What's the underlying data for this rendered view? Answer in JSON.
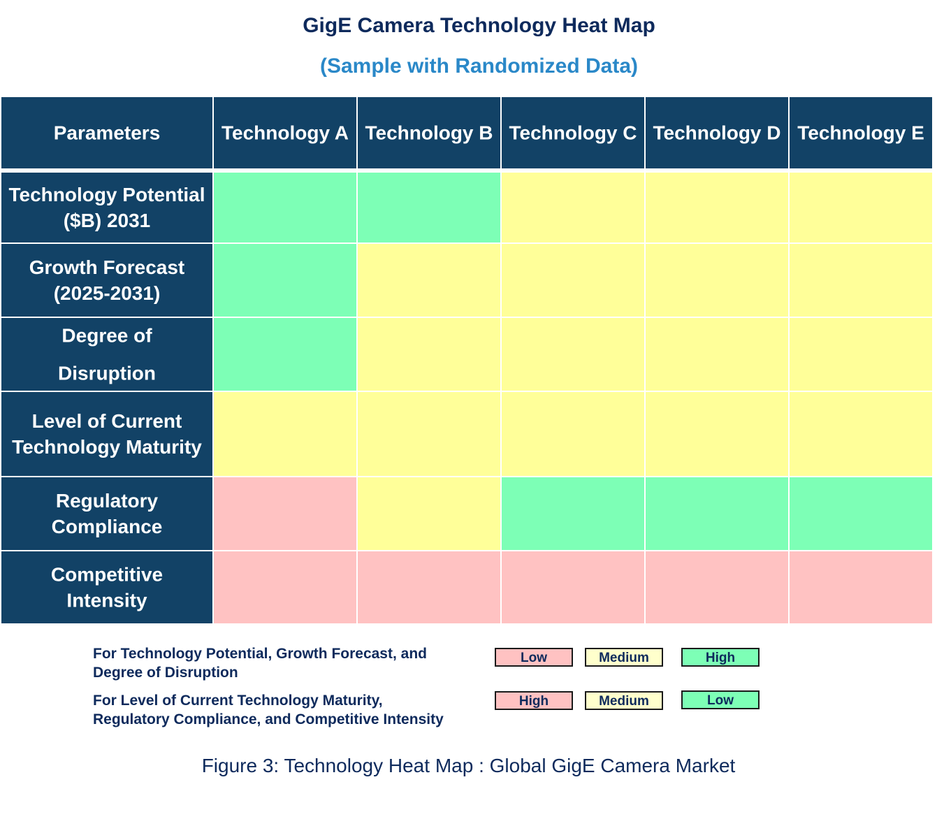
{
  "title": "GigE Camera Technology Heat Map",
  "subtitle": "(Sample with Randomized Data)",
  "colors": {
    "header_bg": "#124266",
    "header_text": "#ffffff",
    "low_good": "#7dffb6",
    "medium": "#ffff99",
    "high_bad": "#ffc2c2",
    "text_dark": "#0e2a5c"
  },
  "chart_data": {
    "type": "heatmap",
    "corner_label": "Parameters",
    "columns": [
      "Technology A",
      "Technology B",
      "Technology C",
      "Technology D",
      "Technology E"
    ],
    "rows": [
      {
        "label_lines": [
          "Technology Potential",
          "($B) 2031"
        ],
        "levels": [
          "High",
          "High",
          "Medium",
          "Medium",
          "Medium"
        ]
      },
      {
        "label_lines": [
          "Growth Forecast",
          "(2025-2031)"
        ],
        "levels": [
          "High",
          "Medium",
          "Medium",
          "Medium",
          "Medium"
        ]
      },
      {
        "label_lines": [
          "Degree of",
          "Disruption"
        ],
        "levels": [
          "High",
          "Medium",
          "Medium",
          "Medium",
          "Medium"
        ]
      },
      {
        "label_lines": [
          "Level of Current",
          "Technology Maturity"
        ],
        "levels": [
          "Medium",
          "Medium",
          "Medium",
          "Medium",
          "Medium"
        ]
      },
      {
        "label_lines": [
          "Regulatory",
          "Compliance"
        ],
        "levels": [
          "High",
          "Medium",
          "Low",
          "Low",
          "Low"
        ]
      },
      {
        "label_lines": [
          "Competitive",
          "Intensity"
        ],
        "levels": [
          "High",
          "High",
          "High",
          "High",
          "High"
        ]
      }
    ],
    "cell_colors": [
      [
        "#7dffb6",
        "#7dffb6",
        "#ffff99",
        "#ffff99",
        "#ffff99"
      ],
      [
        "#7dffb6",
        "#ffff99",
        "#ffff99",
        "#ffff99",
        "#ffff99"
      ],
      [
        "#7dffb6",
        "#ffff99",
        "#ffff99",
        "#ffff99",
        "#ffff99"
      ],
      [
        "#ffff99",
        "#ffff99",
        "#ffff99",
        "#ffff99",
        "#ffff99"
      ],
      [
        "#ffc2c2",
        "#ffff99",
        "#7dffb6",
        "#7dffb6",
        "#7dffb6"
      ],
      [
        "#ffc2c2",
        "#ffc2c2",
        "#ffc2c2",
        "#ffc2c2",
        "#ffc2c2"
      ]
    ]
  },
  "legend": {
    "group1": {
      "text_line1": "For Technology Potential, Growth Forecast, and",
      "text_line2": "Degree of Disruption",
      "items": [
        {
          "label": "Low",
          "color": "#ffc2c2"
        },
        {
          "label": "Medium",
          "color": "#ffffcc"
        },
        {
          "label": "High",
          "color": "#7dffb6"
        }
      ]
    },
    "group2": {
      "text_line1": "For Level of Current Technology Maturity,",
      "text_line2": "Regulatory Compliance, and Competitive Intensity",
      "items": [
        {
          "label": "High",
          "color": "#ffc2c2"
        },
        {
          "label": "Medium",
          "color": "#ffffcc"
        },
        {
          "label": "Low",
          "color": "#7dffb6"
        }
      ]
    }
  },
  "caption": "Figure 3: Technology Heat Map : Global GigE Camera Market"
}
